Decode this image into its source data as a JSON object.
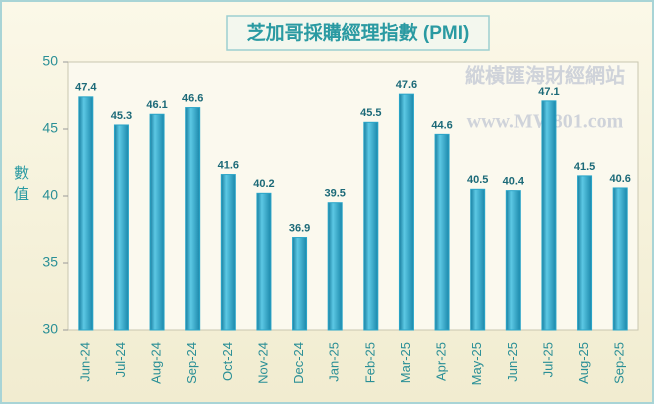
{
  "chart_data": {
    "type": "bar",
    "title": "芝加哥採購經理指數 (PMI)",
    "y_label": "數值",
    "watermark": [
      "縱橫匯海財經網站",
      "www.MW801.com"
    ],
    "categories": [
      "Jun-24",
      "Jul-24",
      "Aug-24",
      "Sep-24",
      "Oct-24",
      "Nov-24",
      "Dec-24",
      "Jan-25",
      "Feb-25",
      "Mar-25",
      "Apr-25",
      "May-25",
      "Jun-25",
      "Jul-25",
      "Aug-25",
      "Sep-25"
    ],
    "values": [
      47.4,
      45.3,
      46.1,
      46.6,
      41.6,
      40.2,
      36.9,
      39.5,
      45.5,
      47.6,
      44.6,
      40.5,
      40.4,
      47.1,
      41.5,
      40.6
    ],
    "color": "#2aa5c8",
    "ylim": [
      30,
      50
    ],
    "yticks": [
      30,
      35,
      40,
      45,
      50
    ],
    "grid": false
  }
}
